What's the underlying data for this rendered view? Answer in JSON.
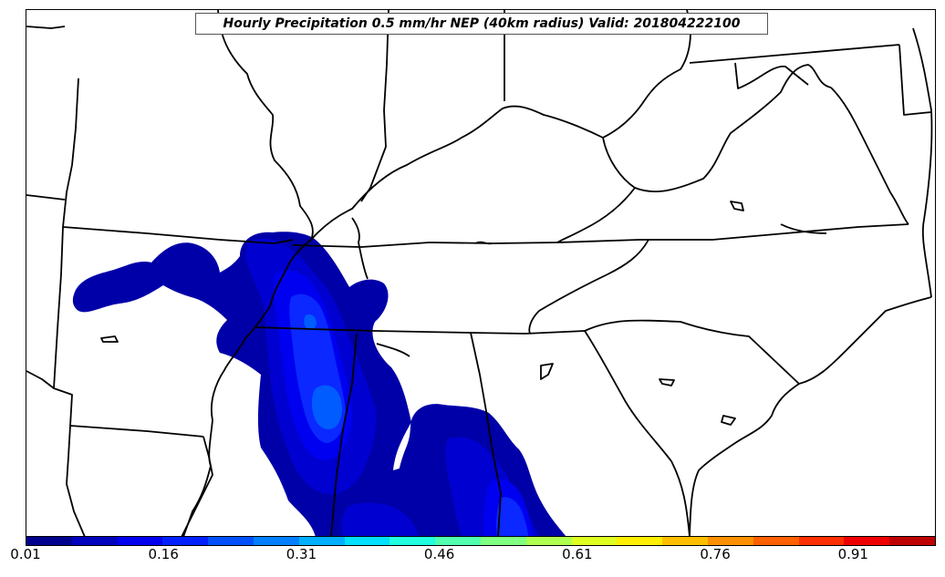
{
  "title": "Hourly Precipitation 0.5 mm/hr NEP (40km radius) Valid: 201804222100",
  "colorbar": {
    "min": 0.01,
    "max": 1.0,
    "tick_labels": [
      "0.01",
      "0.16",
      "0.31",
      "0.46",
      "0.61",
      "0.76",
      "0.91"
    ],
    "colors": [
      "#00008f",
      "#0000bf",
      "#0000ef",
      "#0020ff",
      "#0050ff",
      "#0080ff",
      "#00b0ff",
      "#00e0ff",
      "#20ffdf",
      "#50ffaf",
      "#80ff80",
      "#afff50",
      "#dfff20",
      "#ffef00",
      "#ffbf00",
      "#ff9000",
      "#ff6000",
      "#ff3000",
      "#ef0000",
      "#bf0000"
    ]
  },
  "map": {
    "field": "Hourly Precipitation 0.5 mm/hr NEP",
    "region": "southeastern United States",
    "level_colors": {
      "l1": "#0000a8",
      "l2": "#0000d0",
      "l3": "#0000f0",
      "l4": "#0a28ff",
      "l5": "#005cff"
    },
    "border_color": "#000000"
  }
}
